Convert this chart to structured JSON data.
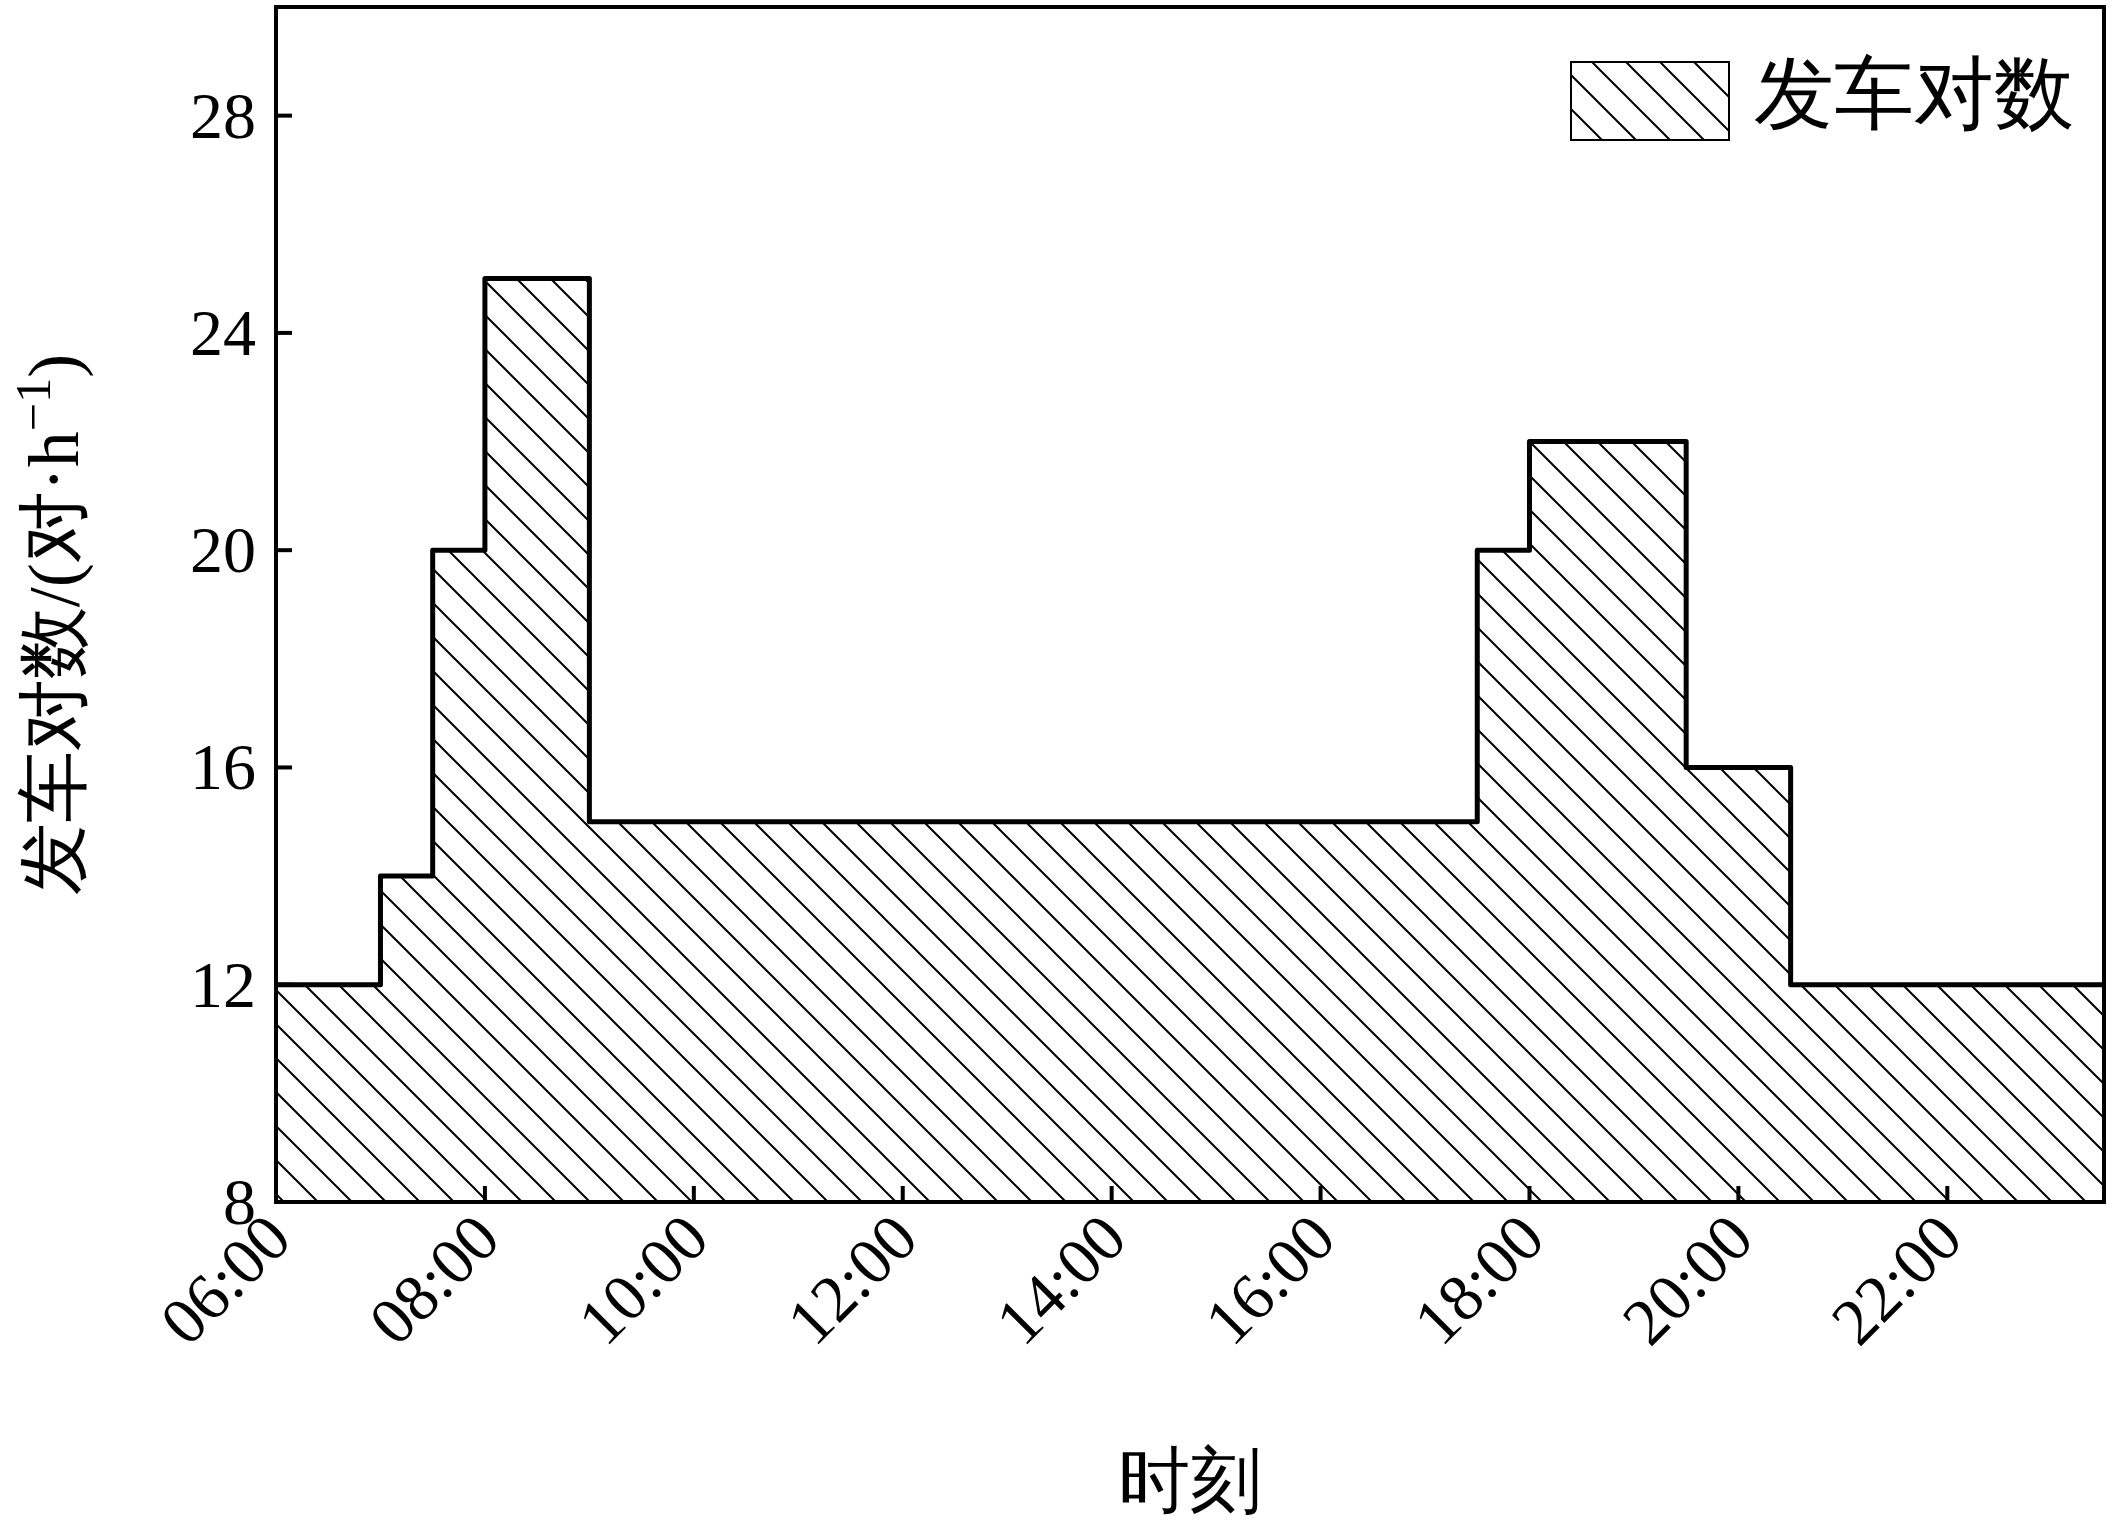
{
  "chart_data": {
    "type": "area",
    "xlabel": "时刻",
    "ylabel": "发车对数/(对·h$^{−1}$)",
    "x": [
      6,
      7,
      7,
      7.5,
      7.5,
      8,
      8,
      9,
      9,
      17.5,
      17.5,
      18,
      18,
      19.5,
      19.5,
      20.5,
      20.5,
      23.5
    ],
    "series": [
      {
        "name": "发车对数",
        "color": "#000000",
        "values": [
          12,
          12,
          14,
          14,
          20,
          20,
          25,
          25,
          15,
          15,
          20,
          20,
          22,
          22,
          16,
          16,
          12,
          12
        ]
      }
    ],
    "xlim": [
      6,
      23.5
    ],
    "ylim": [
      8,
      30
    ],
    "xticks": [
      {
        "value": 6,
        "label": "06:00"
      },
      {
        "value": 8,
        "label": "08:00"
      },
      {
        "value": 10,
        "label": "10:00"
      },
      {
        "value": 12,
        "label": "12:00"
      },
      {
        "value": 14,
        "label": "14:00"
      },
      {
        "value": 16,
        "label": "16:00"
      },
      {
        "value": 18,
        "label": "18:00"
      },
      {
        "value": 20,
        "label": "20:00"
      },
      {
        "value": 22,
        "label": "22:00"
      }
    ],
    "yticks": [
      8,
      12,
      16,
      20,
      24,
      28
    ],
    "legend": "top right",
    "grid": false
  }
}
